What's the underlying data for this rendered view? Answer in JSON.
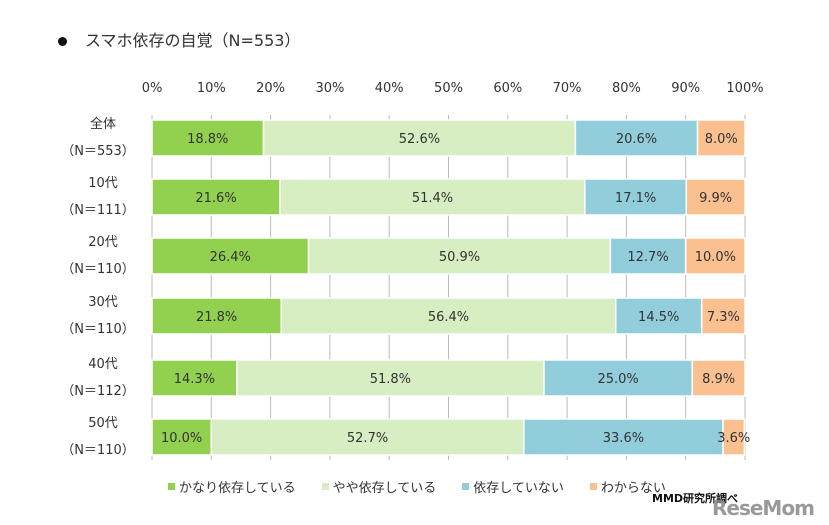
{
  "chart_data": {
    "type": "bar",
    "orientation": "horizontal-stacked-100",
    "title": "スマホ依存の自覚（N=553）",
    "xlim": [
      0,
      100
    ],
    "xticks": [
      "0%",
      "10%",
      "20%",
      "30%",
      "40%",
      "50%",
      "60%",
      "70%",
      "80%",
      "90%",
      "100%"
    ],
    "grid": true,
    "legend_position": "bottom",
    "categories": [
      {
        "name": "全体",
        "n": "（N＝553）"
      },
      {
        "name": "10代",
        "n": "（N＝111）"
      },
      {
        "name": "20代",
        "n": "（N＝110）"
      },
      {
        "name": "30代",
        "n": "（N＝110）"
      },
      {
        "name": "40代",
        "n": "（N＝112）"
      },
      {
        "name": "50代",
        "n": "（N＝110）"
      }
    ],
    "series": [
      {
        "name": "かなり依存している",
        "color": "#92d050",
        "values": [
          18.8,
          21.6,
          26.4,
          21.8,
          14.3,
          10.0
        ]
      },
      {
        "name": "やや依存している",
        "color": "#d7eec2",
        "values": [
          52.6,
          51.4,
          50.9,
          56.4,
          51.8,
          52.7
        ]
      },
      {
        "name": "依存していない",
        "color": "#92cddc",
        "values": [
          20.6,
          17.1,
          12.7,
          14.5,
          25.0,
          33.6
        ]
      },
      {
        "name": "わからない",
        "color": "#fac090",
        "values": [
          8.0,
          9.9,
          10.0,
          7.3,
          8.9,
          3.6
        ]
      }
    ]
  },
  "source": "MMD研究所調べ",
  "logo": "ReseMom"
}
